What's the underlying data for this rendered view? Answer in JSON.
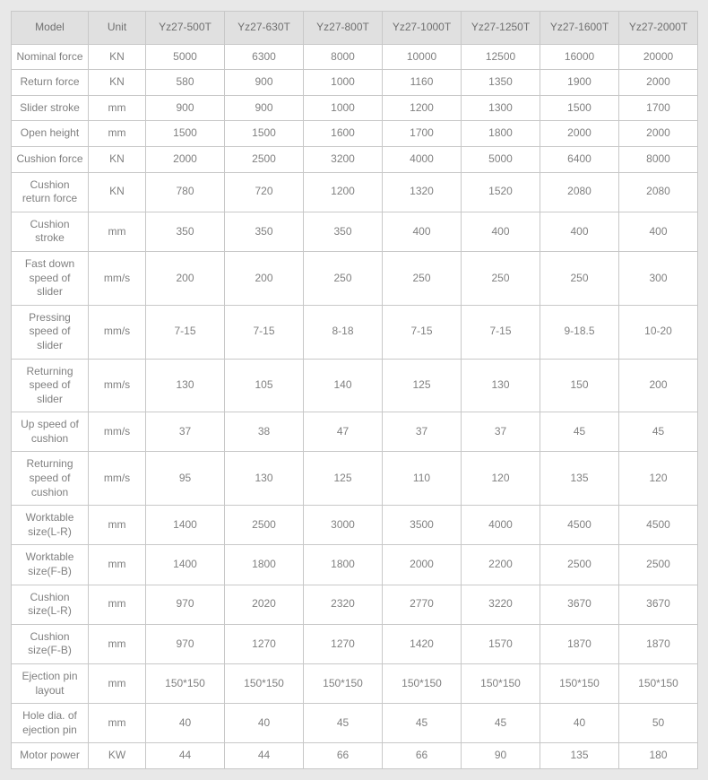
{
  "table": {
    "type": "table",
    "background_color": "#ffffff",
    "page_background": "#e8e8e8",
    "border_color": "#c8c8c8",
    "header_bg": "#e0e0e0",
    "text_color": "#808080",
    "header_text_color": "#707070",
    "font_size": 12,
    "header_font_size": 12,
    "col_widths": {
      "model": 86,
      "unit": 64,
      "data": 88
    },
    "columns": [
      "Model",
      "Unit",
      "Yz27-500T",
      "Yz27-630T",
      "Yz27-800T",
      "Yz27-1000T",
      "Yz27-1250T",
      "Yz27-1600T",
      "Yz27-2000T"
    ],
    "rows": [
      {
        "label": "Nominal force",
        "unit": "KN",
        "values": [
          "5000",
          "6300",
          "8000",
          "10000",
          "12500",
          "16000",
          "20000"
        ]
      },
      {
        "label": "Return force",
        "unit": "KN",
        "values": [
          "580",
          "900",
          "1000",
          "1160",
          "1350",
          "1900",
          "2000"
        ]
      },
      {
        "label": "Slider stroke",
        "unit": "mm",
        "values": [
          "900",
          "900",
          "1000",
          "1200",
          "1300",
          "1500",
          "1700"
        ]
      },
      {
        "label": "Open height",
        "unit": "mm",
        "values": [
          "1500",
          "1500",
          "1600",
          "1700",
          "1800",
          "2000",
          "2000"
        ]
      },
      {
        "label": "Cushion force",
        "unit": "KN",
        "values": [
          "2000",
          "2500",
          "3200",
          "4000",
          "5000",
          "6400",
          "8000"
        ]
      },
      {
        "label": "Cushion return force",
        "unit": "KN",
        "values": [
          "780",
          "720",
          "1200",
          "1320",
          "1520",
          "2080",
          "2080"
        ]
      },
      {
        "label": "Cushion stroke",
        "unit": "mm",
        "values": [
          "350",
          "350",
          "350",
          "400",
          "400",
          "400",
          "400"
        ]
      },
      {
        "label": "Fast down speed of slider",
        "unit": "mm/s",
        "values": [
          "200",
          "200",
          "250",
          "250",
          "250",
          "250",
          "300"
        ]
      },
      {
        "label": "Pressing speed of slider",
        "unit": "mm/s",
        "values": [
          "7-15",
          "7-15",
          "8-18",
          "7-15",
          "7-15",
          "9-18.5",
          "10-20"
        ]
      },
      {
        "label": "Returning speed of slider",
        "unit": "mm/s",
        "values": [
          "130",
          "105",
          "140",
          "125",
          "130",
          "150",
          "200"
        ]
      },
      {
        "label": "Up speed of cushion",
        "unit": "mm/s",
        "values": [
          "37",
          "38",
          "47",
          "37",
          "37",
          "45",
          "45"
        ]
      },
      {
        "label": "Returning speed of cushion",
        "unit": "mm/s",
        "values": [
          "95",
          "130",
          "125",
          "110",
          "120",
          "135",
          "120"
        ]
      },
      {
        "label": "Worktable size(L-R)",
        "unit": "mm",
        "values": [
          "1400",
          "2500",
          "3000",
          "3500",
          "4000",
          "4500",
          "4500"
        ]
      },
      {
        "label": "Worktable size(F-B)",
        "unit": "mm",
        "values": [
          "1400",
          "1800",
          "1800",
          "2000",
          "2200",
          "2500",
          "2500"
        ]
      },
      {
        "label": "Cushion size(L-R)",
        "unit": "mm",
        "values": [
          "970",
          "2020",
          "2320",
          "2770",
          "3220",
          "3670",
          "3670"
        ]
      },
      {
        "label": "Cushion size(F-B)",
        "unit": "mm",
        "values": [
          "970",
          "1270",
          "1270",
          "1420",
          "1570",
          "1870",
          "1870"
        ]
      },
      {
        "label": "Ejection pin layout",
        "unit": "mm",
        "values": [
          "150*150",
          "150*150",
          "150*150",
          "150*150",
          "150*150",
          "150*150",
          "150*150"
        ]
      },
      {
        "label": "Hole dia. of ejection pin",
        "unit": "mm",
        "values": [
          "40",
          "40",
          "45",
          "45",
          "45",
          "40",
          "50"
        ]
      },
      {
        "label": "Motor power",
        "unit": "KW",
        "values": [
          "44",
          "44",
          "66",
          "66",
          "90",
          "135",
          "180"
        ]
      }
    ]
  }
}
